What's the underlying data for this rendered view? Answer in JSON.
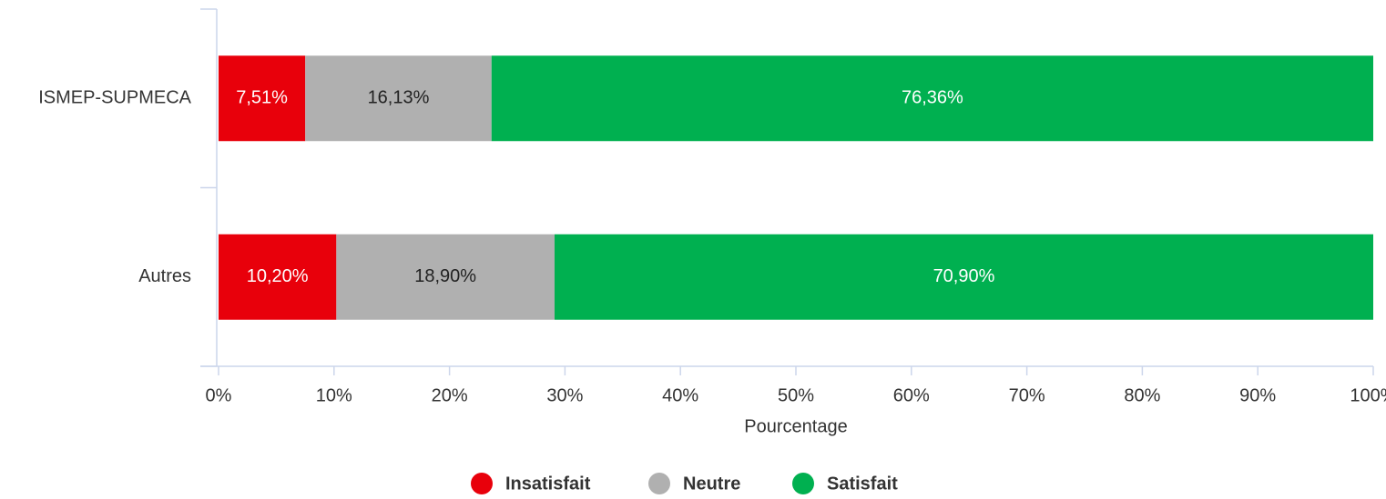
{
  "chart_data": {
    "type": "stacked_bar_horizontal",
    "categories": [
      "ISMEP-SUPMECA",
      "Autres"
    ],
    "series": [
      {
        "name": "Insatisfait",
        "color": "#e8000b",
        "values": [
          7.51,
          10.2
        ],
        "value_labels": [
          "7,51%",
          "10,20%"
        ]
      },
      {
        "name": "Neutre",
        "color": "#b0b0b0",
        "values": [
          16.13,
          18.9
        ],
        "value_labels": [
          "16,13%",
          "18,90%"
        ]
      },
      {
        "name": "Satisfait",
        "color": "#00b050",
        "values": [
          76.36,
          70.9
        ],
        "value_labels": [
          "76,36%",
          "70,90%"
        ]
      }
    ],
    "xlim": [
      0,
      100
    ],
    "xticks": [
      {
        "value": 0,
        "label": "0%"
      },
      {
        "value": 10,
        "label": "10%"
      },
      {
        "value": 20,
        "label": "20%"
      },
      {
        "value": 30,
        "label": "30%"
      },
      {
        "value": 40,
        "label": "40%"
      },
      {
        "value": 50,
        "label": "50%"
      },
      {
        "value": 60,
        "label": "60%"
      },
      {
        "value": 70,
        "label": "70%"
      },
      {
        "value": 80,
        "label": "80%"
      },
      {
        "value": 90,
        "label": "90%"
      },
      {
        "value": 100,
        "label": "100%"
      }
    ],
    "xlabel": "Pourcentage",
    "legend": "bottom"
  }
}
